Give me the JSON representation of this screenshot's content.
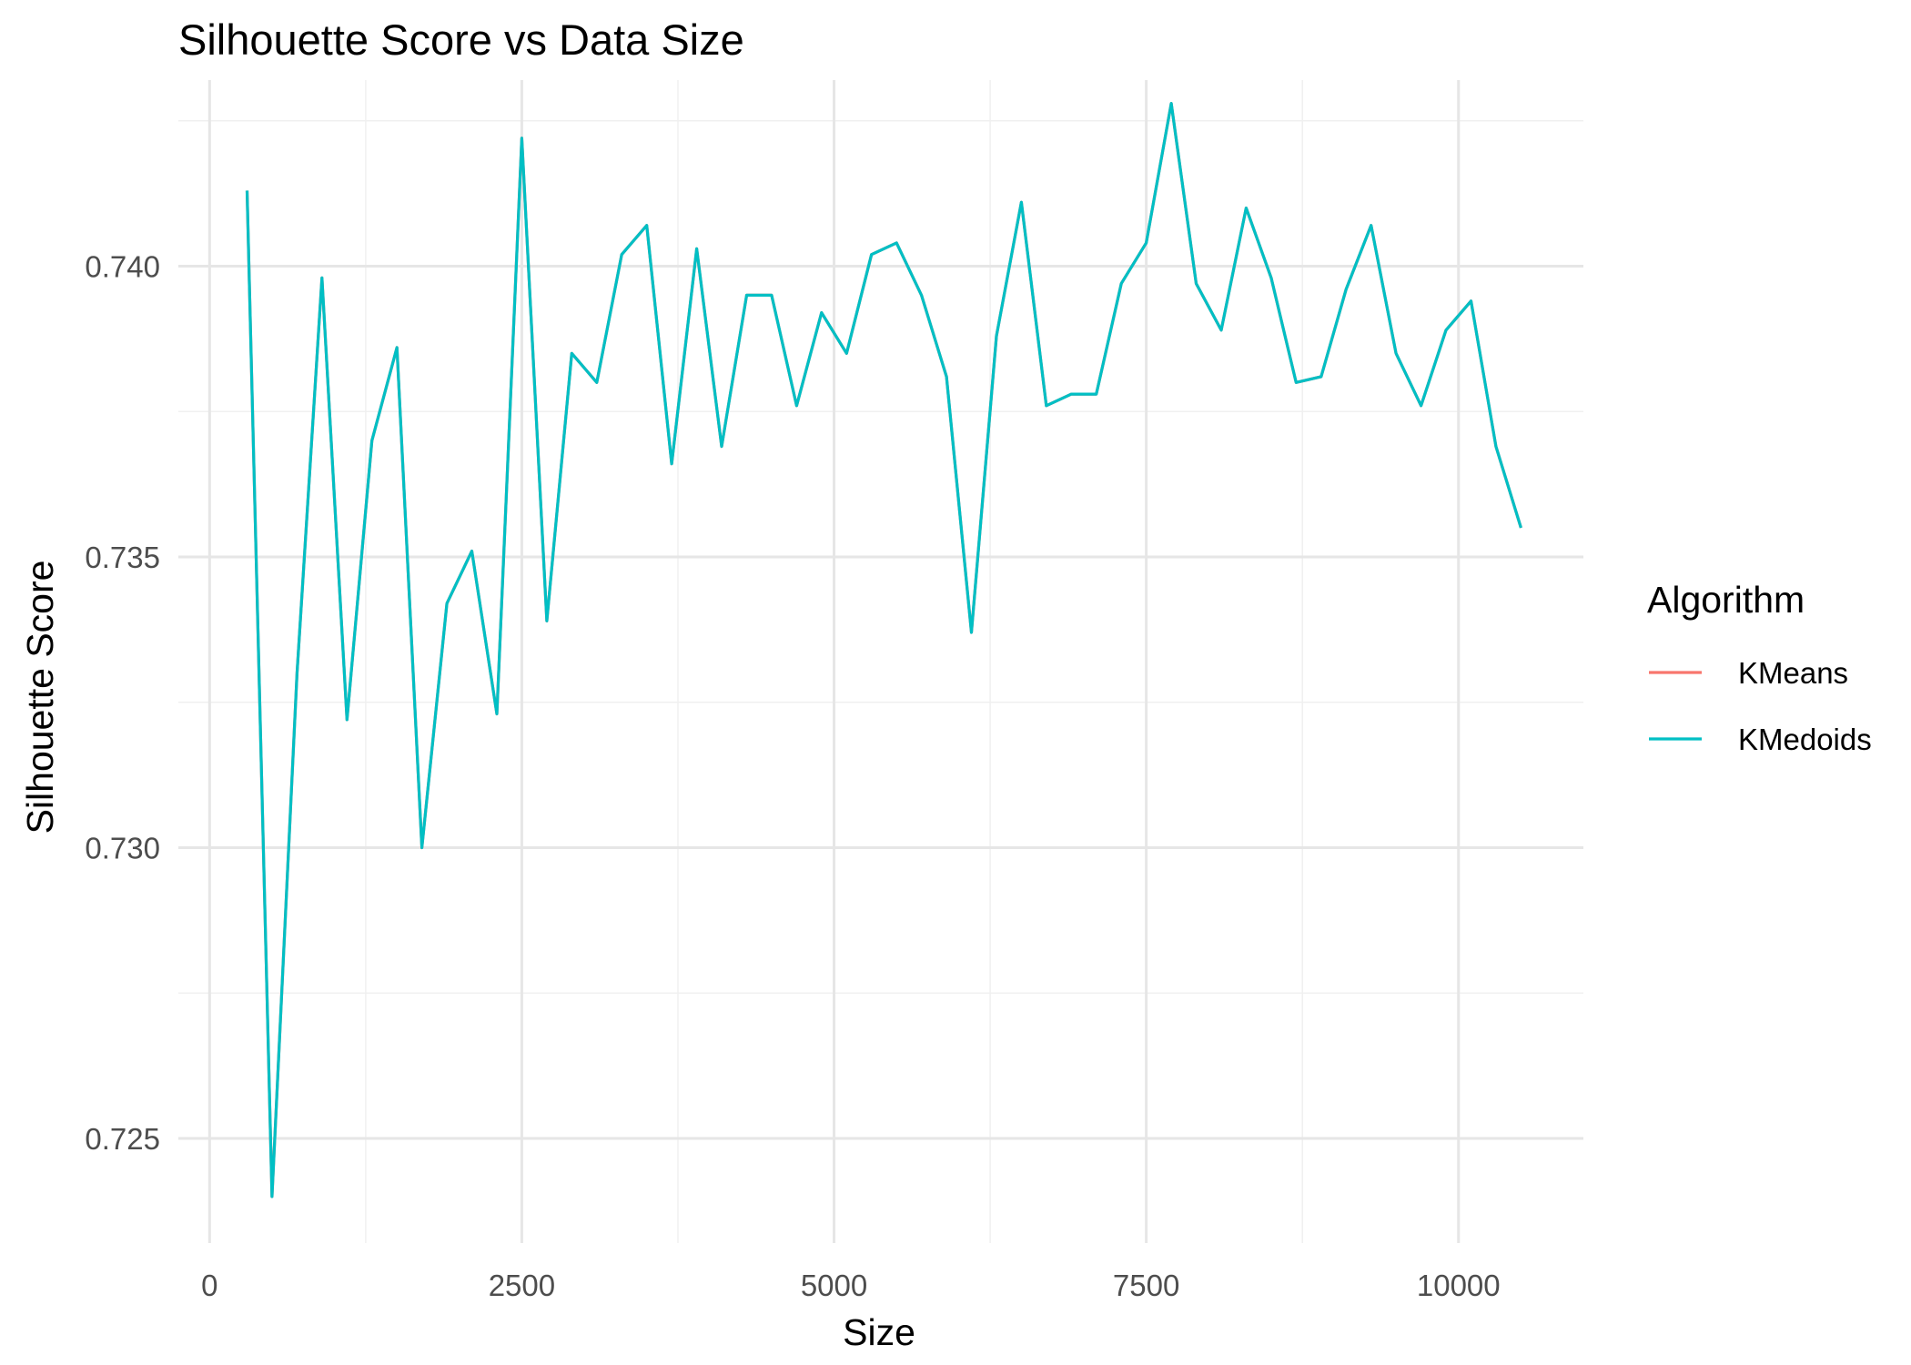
{
  "chart_data": {
    "type": "line",
    "title": "Silhouette Score vs Data Size",
    "xlabel": "Size",
    "ylabel": "Silhouette Score",
    "xlim": [
      -250,
      11000
    ],
    "ylim": [
      0.7232,
      0.7432
    ],
    "x_ticks": [
      0,
      2500,
      5000,
      7500,
      10000
    ],
    "x_tick_labels": [
      "0",
      "2500",
      "5000",
      "7500",
      "10000"
    ],
    "y_ticks": [
      0.725,
      0.73,
      0.735,
      0.74
    ],
    "y_tick_labels": [
      "0.725",
      "0.730",
      "0.735",
      "0.740"
    ],
    "grid": true,
    "legend": {
      "title": "Algorithm",
      "position": "right"
    },
    "series": [
      {
        "name": "KMeans",
        "color": "#F8766D",
        "x": [
          300,
          500,
          700,
          900,
          1100,
          1300,
          1500,
          1700,
          1900,
          2100,
          2300,
          2500,
          2700,
          2900,
          3100,
          3300,
          3500,
          3700,
          3900,
          4100,
          4300,
          4500,
          4700,
          4900,
          5100,
          5300,
          5500,
          5700,
          5900,
          6100,
          6300,
          6500,
          6700,
          6900,
          7100,
          7300,
          7500,
          7700,
          7900,
          8100,
          8300,
          8500,
          8700,
          8900,
          9100,
          9300,
          9500,
          9700,
          9900,
          10100,
          10300,
          10500
        ],
        "y": [
          0.7413,
          0.724,
          0.733,
          0.7398,
          0.7322,
          0.737,
          0.7386,
          0.73,
          0.7342,
          0.7351,
          0.7323,
          0.7422,
          0.7339,
          0.7385,
          0.738,
          0.7402,
          0.7407,
          0.7366,
          0.7403,
          0.7369,
          0.7395,
          0.7395,
          0.7376,
          0.7392,
          0.7385,
          0.7402,
          0.7404,
          0.7395,
          0.7381,
          0.7337,
          0.7388,
          0.7411,
          0.7376,
          0.7378,
          0.7378,
          0.7397,
          0.7404,
          0.7428,
          0.7397,
          0.7389,
          0.741,
          0.7398,
          0.738,
          0.7381,
          0.7396,
          0.7407,
          0.7385,
          0.7376,
          0.7389,
          0.7394,
          0.7369,
          0.7355
        ]
      },
      {
        "name": "KMedoids",
        "color": "#00BFC4",
        "x": [
          300,
          500,
          700,
          900,
          1100,
          1300,
          1500,
          1700,
          1900,
          2100,
          2300,
          2500,
          2700,
          2900,
          3100,
          3300,
          3500,
          3700,
          3900,
          4100,
          4300,
          4500,
          4700,
          4900,
          5100,
          5300,
          5500,
          5700,
          5900,
          6100,
          6300,
          6500,
          6700,
          6900,
          7100,
          7300,
          7500,
          7700,
          7900,
          8100,
          8300,
          8500,
          8700,
          8900,
          9100,
          9300,
          9500,
          9700,
          9900,
          10100,
          10300,
          10500
        ],
        "y": [
          0.7413,
          0.724,
          0.733,
          0.7398,
          0.7322,
          0.737,
          0.7386,
          0.73,
          0.7342,
          0.7351,
          0.7323,
          0.7422,
          0.7339,
          0.7385,
          0.738,
          0.7402,
          0.7407,
          0.7366,
          0.7403,
          0.7369,
          0.7395,
          0.7395,
          0.7376,
          0.7392,
          0.7385,
          0.7402,
          0.7404,
          0.7395,
          0.7381,
          0.7337,
          0.7388,
          0.7411,
          0.7376,
          0.7378,
          0.7378,
          0.7397,
          0.7404,
          0.7428,
          0.7397,
          0.7389,
          0.741,
          0.7398,
          0.738,
          0.7381,
          0.7396,
          0.7407,
          0.7385,
          0.7376,
          0.7389,
          0.7394,
          0.7369,
          0.7355
        ]
      }
    ]
  }
}
